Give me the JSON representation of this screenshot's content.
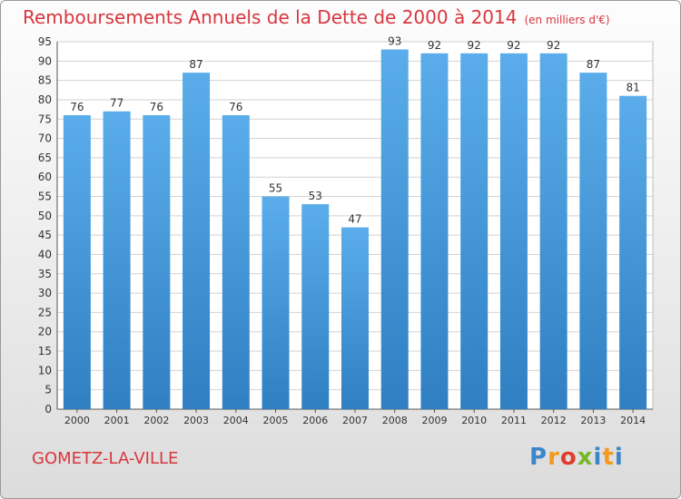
{
  "page": {
    "title": "Remboursements Annuels de la Dette de 2000 à 2014",
    "unit": "(en milliers d'€)",
    "city": "GOMETZ-LA-VILLE",
    "logo": "Proxiti",
    "logo_letters": [
      "P",
      "r",
      "o",
      "x",
      "i",
      "t",
      "i"
    ]
  },
  "colors": {
    "title": "#d9363e",
    "bar_light": "#5aadea",
    "bar_dark": "#2f7fc2",
    "grid": "#d2d2d2",
    "axis_text": "#333333"
  },
  "chart_data": {
    "type": "bar",
    "title": "Remboursements Annuels de la Dette de 2000 à 2014",
    "subtitle": "(en milliers d'€)",
    "xlabel": "",
    "ylabel": "",
    "categories": [
      "2000",
      "2001",
      "2002",
      "2003",
      "2004",
      "2005",
      "2006",
      "2007",
      "2008",
      "2009",
      "2010",
      "2011",
      "2012",
      "2013",
      "2014"
    ],
    "values": [
      76,
      77,
      76,
      87,
      76,
      55,
      53,
      47,
      93,
      92,
      92,
      92,
      92,
      87,
      81
    ],
    "ylim": [
      0,
      95
    ],
    "yticks": [
      0,
      5,
      10,
      15,
      20,
      25,
      30,
      35,
      40,
      45,
      50,
      55,
      60,
      65,
      70,
      75,
      80,
      85,
      90,
      95
    ],
    "grid": true,
    "data_labels": true
  }
}
